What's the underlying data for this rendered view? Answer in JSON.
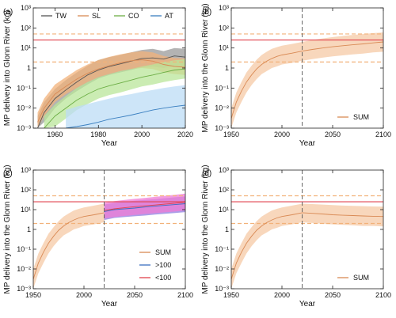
{
  "chart_data": [
    {
      "panel": "(a)",
      "type": "area",
      "xlabel": "Year",
      "ylabel": "MP delivery into Glonn River (kg)",
      "xlim": [
        1950,
        2020
      ],
      "ylim": [
        0.001,
        1000
      ],
      "yscale": "log",
      "xticks": [
        "1960",
        "1980",
        "2000",
        "2020"
      ],
      "yticks": [
        "10⁻³",
        "10⁻²",
        "10⁻¹",
        "1",
        "10¹",
        "10²",
        "10³"
      ],
      "legend_position": "top",
      "reference_lines": [
        {
          "style": "dashed",
          "color": "#f2b27a",
          "value": 2
        },
        {
          "style": "solid",
          "color": "#e0424c",
          "value": 25
        },
        {
          "style": "dashed",
          "color": "#f2b27a",
          "value": 50
        }
      ],
      "series": [
        {
          "name": "TW",
          "color": "#555555",
          "band_color": "#999999",
          "x": [
            1952,
            1955,
            1960,
            1965,
            1970,
            1975,
            1980,
            1985,
            1990,
            1995,
            2000,
            2005,
            2010,
            2015,
            2020
          ],
          "y": [
            0.001,
            0.006,
            0.03,
            0.08,
            0.2,
            0.45,
            0.8,
            1.2,
            1.6,
            2.2,
            3.0,
            3.2,
            2.8,
            4.0,
            3.5
          ],
          "lower": [
            0.0004,
            0.002,
            0.01,
            0.03,
            0.07,
            0.15,
            0.3,
            0.45,
            0.6,
            0.8,
            1.1,
            1.2,
            1.0,
            1.3,
            1.2
          ],
          "upper": [
            0.004,
            0.02,
            0.09,
            0.25,
            0.6,
            1.3,
            2.5,
            3.5,
            4.5,
            6,
            8,
            9,
            7,
            10,
            9
          ]
        },
        {
          "name": "SL",
          "color": "#d98a55",
          "band_color": "#f2b27a",
          "x": [
            1952,
            1955,
            1960,
            1965,
            1970,
            1975,
            1980,
            1985,
            1990,
            1995,
            2000,
            2005,
            2010,
            2015,
            2020
          ],
          "y": [
            0.002,
            0.01,
            0.05,
            0.12,
            0.28,
            0.55,
            0.9,
            1.3,
            1.8,
            2.3,
            2.6,
            2.2,
            1.5,
            1.2,
            1.1
          ],
          "lower": [
            0.0008,
            0.004,
            0.02,
            0.05,
            0.1,
            0.2,
            0.35,
            0.5,
            0.7,
            0.9,
            1.0,
            0.9,
            0.6,
            0.5,
            0.45
          ],
          "upper": [
            0.006,
            0.03,
            0.15,
            0.35,
            0.8,
            1.5,
            2.5,
            3.6,
            4.8,
            6,
            7,
            6,
            4,
            3.2,
            3
          ]
        },
        {
          "name": "CO",
          "color": "#6cae45",
          "band_color": "#b9e59a",
          "x": [
            1955,
            1960,
            1965,
            1970,
            1975,
            1980,
            1985,
            1990,
            1995,
            2000,
            2005,
            2010,
            2015,
            2020
          ],
          "y": [
            0.001,
            0.004,
            0.01,
            0.025,
            0.05,
            0.09,
            0.13,
            0.18,
            0.25,
            0.35,
            0.45,
            0.6,
            0.8,
            0.9
          ],
          "lower": [
            0.0003,
            0.0012,
            0.003,
            0.008,
            0.016,
            0.03,
            0.045,
            0.06,
            0.085,
            0.12,
            0.15,
            0.2,
            0.25,
            0.3
          ],
          "upper": [
            0.004,
            0.015,
            0.04,
            0.1,
            0.2,
            0.35,
            0.5,
            0.7,
            0.9,
            1.2,
            1.5,
            2,
            2.4,
            2.8
          ]
        },
        {
          "name": "AT",
          "color": "#3a7fc0",
          "band_color": "#bcdcf5",
          "x": [
            1965,
            1970,
            1975,
            1980,
            1985,
            1990,
            1995,
            2000,
            2005,
            2010,
            2015,
            2020
          ],
          "y": [
            0.0008,
            0.0012,
            0.0015,
            0.002,
            0.0028,
            0.0035,
            0.0045,
            0.006,
            0.008,
            0.01,
            0.012,
            0.014
          ],
          "lower": [
            0.001,
            0.001,
            0.001,
            0.001,
            0.001,
            0.001,
            0.001,
            0.001,
            0.001,
            0.001,
            0.001,
            0.001
          ],
          "upper": [
            0.008,
            0.012,
            0.016,
            0.022,
            0.03,
            0.04,
            0.05,
            0.065,
            0.08,
            0.1,
            0.12,
            0.14
          ]
        }
      ]
    },
    {
      "panel": "(b)",
      "type": "area",
      "xlabel": "Year",
      "ylabel": "MP delivery into the Glonn River (kg)",
      "xlim": [
        1950,
        2100
      ],
      "ylim": [
        0.001,
        1000
      ],
      "yscale": "log",
      "xticks": [
        "1950",
        "2000",
        "2050",
        "2100"
      ],
      "yticks": [
        "10⁻³",
        "10⁻²",
        "10⁻¹",
        "1",
        "10¹",
        "10²",
        "10³"
      ],
      "vline": 2020,
      "legend_position": "lower right",
      "reference_lines": [
        {
          "style": "dashed",
          "color": "#f2b27a",
          "value": 2
        },
        {
          "style": "solid",
          "color": "#e0424c",
          "value": 25
        },
        {
          "style": "dashed",
          "color": "#f2b27a",
          "value": 50
        }
      ],
      "series": [
        {
          "name": "SUM",
          "color": "#d98a55",
          "band_color": "#f6c9a5",
          "x": [
            1950,
            1955,
            1960,
            1965,
            1970,
            1975,
            1980,
            1985,
            1990,
            1995,
            2000,
            2010,
            2020,
            2030,
            2040,
            2050,
            2060,
            2070,
            2080,
            2090,
            2100
          ],
          "y": [
            0.003,
            0.02,
            0.07,
            0.2,
            0.45,
            0.9,
            1.5,
            2.2,
            3,
            3.8,
            4.5,
            5.5,
            7,
            8.5,
            10,
            11.5,
            13,
            14.5,
            16,
            18,
            20
          ],
          "lower": [
            0.001,
            0.006,
            0.02,
            0.06,
            0.14,
            0.28,
            0.5,
            0.7,
            1,
            1.2,
            1.5,
            1.8,
            2.3,
            2.8,
            3.3,
            3.8,
            4.3,
            4.8,
            5.3,
            6,
            6.5
          ],
          "upper": [
            0.01,
            0.06,
            0.2,
            0.6,
            1.3,
            2.6,
            4.5,
            6.5,
            9,
            11,
            13,
            16,
            20,
            25,
            30,
            35,
            40,
            45,
            50,
            55,
            60
          ]
        }
      ]
    },
    {
      "panel": "(c)",
      "type": "area",
      "xlabel": "Year",
      "ylabel": "MP delivery into the Glonn River (kg)",
      "xlim": [
        1950,
        2100
      ],
      "ylim": [
        0.001,
        1000
      ],
      "yscale": "log",
      "xticks": [
        "1950",
        "2000",
        "2050",
        "2100"
      ],
      "yticks": [
        "10⁻³",
        "10⁻²",
        "10⁻¹",
        "1",
        "10¹",
        "10²",
        "10³"
      ],
      "vline": 2020,
      "legend_position": "lower right",
      "reference_lines": [
        {
          "style": "dashed",
          "color": "#f2b27a",
          "value": 2
        },
        {
          "style": "solid",
          "color": "#e0424c",
          "value": 25
        },
        {
          "style": "dashed",
          "color": "#f2b27a",
          "value": 50
        }
      ],
      "series": [
        {
          "name": "SUM",
          "color": "#d98a55",
          "band_color": "#f6c9a5",
          "x": [
            1950,
            1955,
            1960,
            1965,
            1970,
            1975,
            1980,
            1985,
            1990,
            1995,
            2000,
            2010,
            2020
          ],
          "y": [
            0.003,
            0.02,
            0.07,
            0.2,
            0.45,
            0.9,
            1.5,
            2.2,
            3,
            3.8,
            4.5,
            5.5,
            7
          ],
          "lower": [
            0.001,
            0.006,
            0.02,
            0.06,
            0.14,
            0.28,
            0.5,
            0.7,
            1,
            1.2,
            1.5,
            1.8,
            2.3
          ],
          "upper": [
            0.01,
            0.06,
            0.2,
            0.6,
            1.3,
            2.6,
            4.5,
            6.5,
            9,
            11,
            13,
            16,
            20
          ]
        },
        {
          "name": ">100",
          "color": "#3a6fc0",
          "band_color": "#8f7ee0",
          "x": [
            2020,
            2030,
            2040,
            2050,
            2060,
            2070,
            2080,
            2090,
            2100
          ],
          "y": [
            8,
            10,
            11,
            12,
            13.5,
            15,
            16.5,
            18,
            20
          ],
          "lower": [
            3,
            3.8,
            4.2,
            4.6,
            5,
            5.6,
            6.2,
            6.8,
            7.5
          ],
          "upper": [
            18,
            22,
            25,
            28,
            31,
            34,
            38,
            42,
            46
          ]
        },
        {
          "name": "<100",
          "color": "#e0424c",
          "band_color": "#f07bd6",
          "x": [
            2020,
            2030,
            2040,
            2050,
            2060,
            2070,
            2080,
            2090,
            2100
          ],
          "y": [
            9,
            11,
            12.5,
            14,
            15.5,
            17,
            19,
            21,
            24
          ],
          "lower": [
            3.5,
            4.2,
            4.8,
            5.4,
            6,
            6.6,
            7.3,
            8,
            9
          ],
          "upper": [
            22,
            27,
            31,
            35,
            39,
            44,
            50,
            56,
            65
          ]
        }
      ]
    },
    {
      "panel": "(d)",
      "type": "area",
      "xlabel": "Year",
      "ylabel": "MP delivery into the Glonn River (kg)",
      "xlim": [
        1950,
        2100
      ],
      "ylim": [
        0.001,
        1000
      ],
      "yscale": "log",
      "xticks": [
        "1950",
        "2000",
        "2050",
        "2100"
      ],
      "yticks": [
        "10⁻³",
        "10⁻²",
        "10⁻¹",
        "1",
        "10¹",
        "10²",
        "10³"
      ],
      "vline": 2020,
      "legend_position": "lower right",
      "reference_lines": [
        {
          "style": "dashed",
          "color": "#f2b27a",
          "value": 2
        },
        {
          "style": "solid",
          "color": "#e0424c",
          "value": 25
        },
        {
          "style": "dashed",
          "color": "#f2b27a",
          "value": 50
        }
      ],
      "series": [
        {
          "name": "SUM",
          "color": "#d98a55",
          "band_color": "#f6c9a5",
          "x": [
            1950,
            1955,
            1960,
            1965,
            1970,
            1975,
            1980,
            1985,
            1990,
            1995,
            2000,
            2010,
            2020,
            2030,
            2040,
            2050,
            2060,
            2070,
            2080,
            2090,
            2100
          ],
          "y": [
            0.003,
            0.02,
            0.07,
            0.2,
            0.45,
            0.9,
            1.5,
            2.2,
            3,
            3.8,
            4.5,
            5.5,
            7,
            6.5,
            6,
            5.5,
            5.2,
            5,
            4.8,
            4.6,
            4.5
          ],
          "lower": [
            0.001,
            0.006,
            0.02,
            0.06,
            0.14,
            0.28,
            0.5,
            0.7,
            1,
            1.2,
            1.5,
            1.8,
            2.3,
            2.1,
            1.9,
            1.8,
            1.7,
            1.6,
            1.5,
            1.5,
            1.4
          ],
          "upper": [
            0.01,
            0.06,
            0.2,
            0.6,
            1.3,
            2.6,
            4.5,
            6.5,
            9,
            11,
            13,
            16,
            20,
            19,
            18,
            17,
            16,
            15.5,
            15,
            14.5,
            14
          ]
        }
      ]
    }
  ]
}
